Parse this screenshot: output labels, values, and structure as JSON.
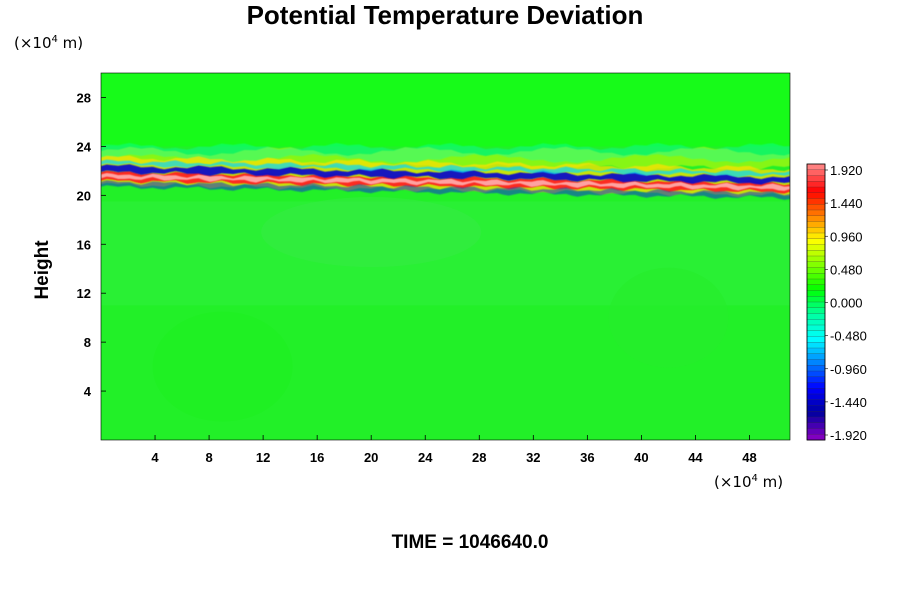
{
  "chart_data": {
    "type": "heatmap",
    "title": "Potential Temperature Deviation",
    "ylabel": "Height",
    "xlabel": "",
    "x_unit": {
      "base": "(×10",
      "exp": "4",
      "rest": " m)"
    },
    "y_unit": {
      "base": "(×10",
      "exp": "4",
      "rest": " m)"
    },
    "x_ticks": [
      "4",
      "8",
      "12",
      "16",
      "20",
      "24",
      "28",
      "32",
      "36",
      "40",
      "44",
      "48"
    ],
    "y_ticks": [
      "4",
      "8",
      "12",
      "16",
      "20",
      "24",
      "28"
    ],
    "xlim": [
      0,
      51
    ],
    "ylim": [
      0,
      30
    ],
    "colorbar": {
      "labels": [
        "1.920",
        "1.440",
        "0.960",
        "0.480",
        "0.000",
        "-0.480",
        "-0.960",
        "-1.440",
        "-1.920"
      ],
      "range": [
        -1.92,
        1.92
      ],
      "colors": [
        "#ff8080",
        "#ff0000",
        "#ff8000",
        "#ffff00",
        "#80ff00",
        "#00ff00",
        "#00ffa0",
        "#00ffff",
        "#0080ff",
        "#0000ff",
        "#0000a0",
        "#8000c0"
      ]
    },
    "field_summary": [
      {
        "feature": "background",
        "height_range": [
          0,
          30
        ],
        "value": 0.0
      },
      {
        "feature": "positive band",
        "height_range": [
          20.2,
          21.0
        ],
        "value": 1.92
      },
      {
        "feature": "negative band",
        "height_range": [
          21.0,
          21.6
        ],
        "value": -1.92
      },
      {
        "feature": "weak positive layer",
        "height_range": [
          22.0,
          23.5
        ],
        "value": 0.48
      },
      {
        "feature": "weak negative layer",
        "height_range": [
          22.8,
          24.0
        ],
        "value": -0.48
      }
    ]
  },
  "time_label": "TIME = 1046640.0"
}
